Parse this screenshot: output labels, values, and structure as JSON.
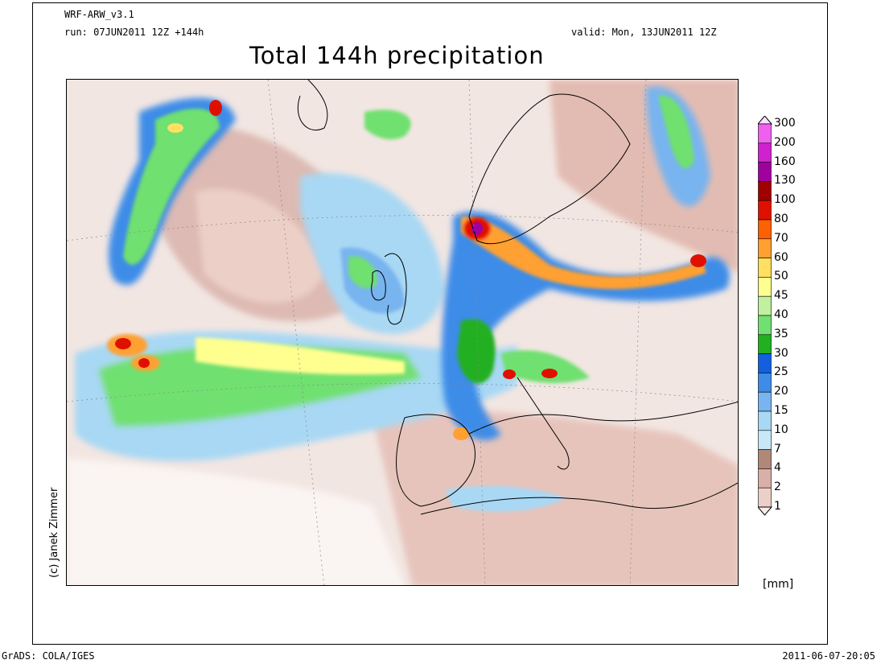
{
  "header": {
    "model": "WRF-ARW_v3.1",
    "run": "run: 07JUN2011 12Z +144h",
    "valid": "valid: Mon, 13JUN2011 12Z",
    "title": "Total 144h precipitation"
  },
  "credit": "(c) Janek Zimmer",
  "legend": {
    "units": "[mm]",
    "levels": [
      "300",
      "200",
      "160",
      "130",
      "100",
      "80",
      "70",
      "60",
      "50",
      "45",
      "40",
      "35",
      "30",
      "25",
      "20",
      "15",
      "10",
      "7",
      "4",
      "2",
      "1"
    ],
    "colors": [
      "#ffe0ff",
      "#f060f0",
      "#d020d0",
      "#a000a0",
      "#a00000",
      "#e01000",
      "#ff6000",
      "#ffa030",
      "#ffe060",
      "#ffff90",
      "#c0f0a0",
      "#70e070",
      "#20b020",
      "#1060e0",
      "#3c8ce8",
      "#78b4ef",
      "#a8d8f4",
      "#c8e8f8",
      "#b08878",
      "#d8b0a8",
      "#ecd0c8",
      "#f8ece8"
    ]
  },
  "footer": {
    "left": "GrADS: COLA/IGES",
    "right": "2011-06-07-20:05"
  }
}
